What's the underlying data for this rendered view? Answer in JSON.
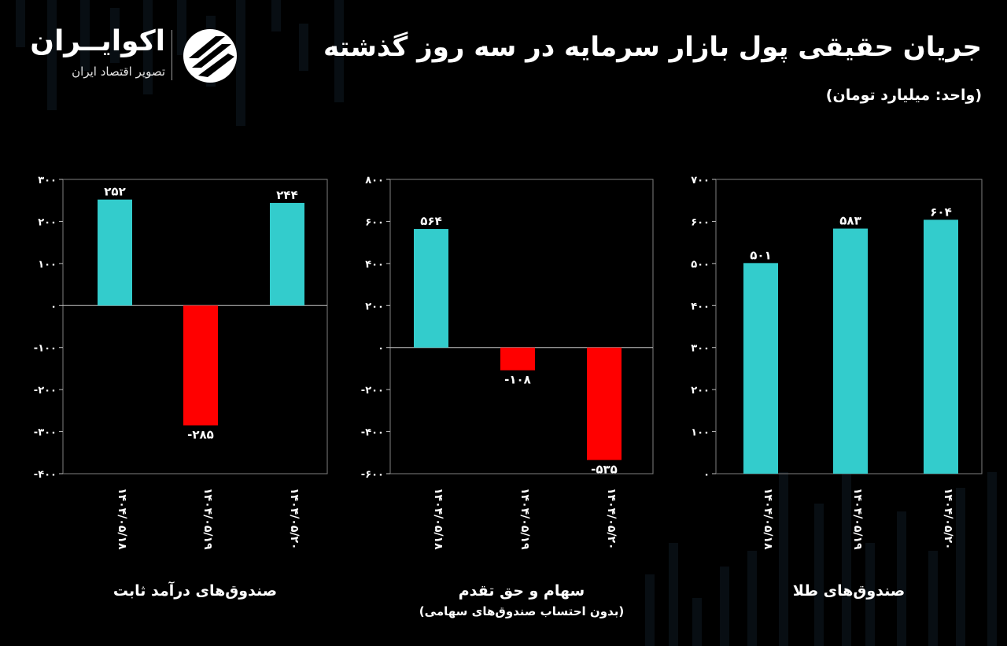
{
  "header": {
    "title": "جریان حقیقی پول بازار سرمایه در سه روز گذشته",
    "unit": "(واحد: میلیارد تومان)"
  },
  "brand": {
    "name": "اکوایــران",
    "tagline": "تصویر اقتصاد ایران"
  },
  "colors": {
    "background": "#000000",
    "positive": "#33CCCC",
    "negative": "#FF0000",
    "text": "#FFFFFF",
    "grid": "#808080"
  },
  "chart_data": [
    {
      "type": "bar",
      "title": "صندوق‌های درآمد ثابت",
      "subtitle": "",
      "categories": [
        "۱۴۰۴/۰۵/۱۸",
        "۱۴۰۴/۰۵/۱۹",
        "۱۴۰۴/۰۵/۲۰"
      ],
      "values": [
        252,
        -285,
        244
      ],
      "value_labels": [
        "۲۵۲",
        "-۲۸۵",
        "۲۴۴"
      ],
      "ylim": [
        -400,
        300
      ],
      "yticks": [
        300,
        200,
        100,
        0,
        -100,
        -200,
        -300,
        -400
      ],
      "ytick_labels": [
        "۳۰۰",
        "۲۰۰",
        "۱۰۰",
        "۰",
        "-۱۰۰",
        "-۲۰۰",
        "-۳۰۰",
        "-۴۰۰"
      ],
      "grid": false
    },
    {
      "type": "bar",
      "title": "سهام و حق تقدم",
      "subtitle": "(بدون احتساب صندوق‌های سهامی)",
      "categories": [
        "۱۴۰۴/۰۵/۱۸",
        "۱۴۰۴/۰۵/۱۹",
        "۱۴۰۴/۰۵/۲۰"
      ],
      "values": [
        564,
        -108,
        -535
      ],
      "value_labels": [
        "۵۶۴",
        "-۱۰۸",
        "-۵۳۵"
      ],
      "ylim": [
        -600,
        800
      ],
      "yticks": [
        800,
        600,
        400,
        200,
        0,
        -200,
        -400,
        -600
      ],
      "ytick_labels": [
        "۸۰۰",
        "۶۰۰",
        "۴۰۰",
        "۲۰۰",
        "۰",
        "-۲۰۰",
        "-۴۰۰",
        "-۶۰۰"
      ],
      "grid": false
    },
    {
      "type": "bar",
      "title": "صندوق‌های طلا",
      "subtitle": "",
      "categories": [
        "۱۴۰۴/۰۵/۱۸",
        "۱۴۰۴/۰۵/۱۹",
        "۱۴۰۴/۰۵/۲۰"
      ],
      "values": [
        501,
        583,
        604
      ],
      "value_labels": [
        "۵۰۱",
        "۵۸۳",
        "۶۰۴"
      ],
      "ylim": [
        0,
        700
      ],
      "yticks": [
        700,
        600,
        500,
        400,
        300,
        200,
        100,
        0
      ],
      "ytick_labels": [
        "۷۰۰",
        "۶۰۰",
        "۵۰۰",
        "۴۰۰",
        "۳۰۰",
        "۲۰۰",
        "۱۰۰",
        "۰"
      ],
      "grid": false
    }
  ]
}
